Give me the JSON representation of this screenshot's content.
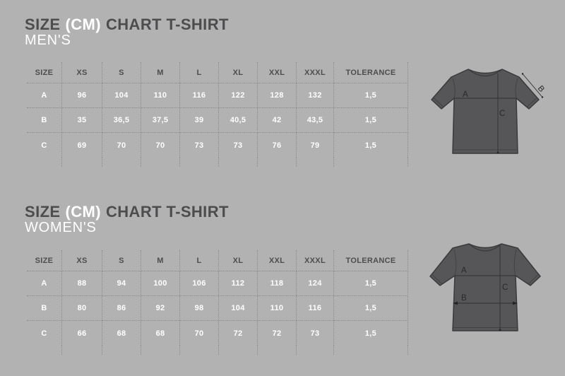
{
  "colors": {
    "background": "#b2b2b2",
    "title_dark": "#4d4d4f",
    "title_light": "#ffffff",
    "table_line": "#898989",
    "shirt_fill": "#565658",
    "shirt_outline": "#3a3a3c"
  },
  "sections": [
    {
      "id": "mens",
      "title": {
        "part1": "SIZE",
        "part2": "(CM)",
        "part3": "CHART T-SHIRT"
      },
      "subtitle": "MEN'S",
      "table": {
        "columns": [
          "SIZE",
          "XS",
          "S",
          "M",
          "L",
          "XL",
          "XXL",
          "XXXL",
          "TOLERANCE"
        ],
        "rows": [
          {
            "label": "A",
            "values": [
              "96",
              "104",
              "110",
              "116",
              "122",
              "128",
              "132",
              "1,5"
            ]
          },
          {
            "label": "B",
            "values": [
              "35",
              "36,5",
              "37,5",
              "39",
              "40,5",
              "42",
              "43,5",
              "1,5"
            ]
          },
          {
            "label": "C",
            "values": [
              "69",
              "70",
              "70",
              "73",
              "73",
              "76",
              "79",
              "1,5"
            ]
          }
        ]
      },
      "diagram": {
        "label_a": "A",
        "label_b": "B",
        "label_c": "C"
      }
    },
    {
      "id": "womens",
      "title": {
        "part1": "SIZE",
        "part2": "(CM)",
        "part3": "CHART T-SHIRT"
      },
      "subtitle": "WOMEN'S",
      "table": {
        "columns": [
          "SIZE",
          "XS",
          "S",
          "M",
          "L",
          "XL",
          "XXL",
          "XXXL",
          "TOLERANCE"
        ],
        "rows": [
          {
            "label": "A",
            "values": [
              "88",
              "94",
              "100",
              "106",
              "112",
              "118",
              "124",
              "1,5"
            ]
          },
          {
            "label": "B",
            "values": [
              "80",
              "86",
              "92",
              "98",
              "104",
              "110",
              "116",
              "1,5"
            ]
          },
          {
            "label": "C",
            "values": [
              "66",
              "68",
              "68",
              "70",
              "72",
              "72",
              "73",
              "1,5"
            ]
          }
        ]
      },
      "diagram": {
        "label_a": "A",
        "label_b": "B",
        "label_c": "C"
      }
    }
  ],
  "chart_data": [
    {
      "type": "table",
      "title": "SIZE (CM) CHART T-SHIRT MEN'S",
      "columns": [
        "SIZE",
        "XS",
        "S",
        "M",
        "L",
        "XL",
        "XXL",
        "XXXL",
        "TOLERANCE"
      ],
      "rows": [
        [
          "A",
          "96",
          "104",
          "110",
          "116",
          "122",
          "128",
          "132",
          "1,5"
        ],
        [
          "B",
          "35",
          "36,5",
          "37,5",
          "39",
          "40,5",
          "42",
          "43,5",
          "1,5"
        ],
        [
          "C",
          "69",
          "70",
          "70",
          "73",
          "73",
          "76",
          "79",
          "1,5"
        ]
      ]
    },
    {
      "type": "table",
      "title": "SIZE (CM) CHART T-SHIRT WOMEN'S",
      "columns": [
        "SIZE",
        "XS",
        "S",
        "M",
        "L",
        "XL",
        "XXL",
        "XXXL",
        "TOLERANCE"
      ],
      "rows": [
        [
          "A",
          "88",
          "94",
          "100",
          "106",
          "112",
          "118",
          "124",
          "1,5"
        ],
        [
          "B",
          "80",
          "86",
          "92",
          "98",
          "104",
          "110",
          "116",
          "1,5"
        ],
        [
          "C",
          "66",
          "68",
          "68",
          "70",
          "72",
          "72",
          "73",
          "1,5"
        ]
      ]
    }
  ]
}
